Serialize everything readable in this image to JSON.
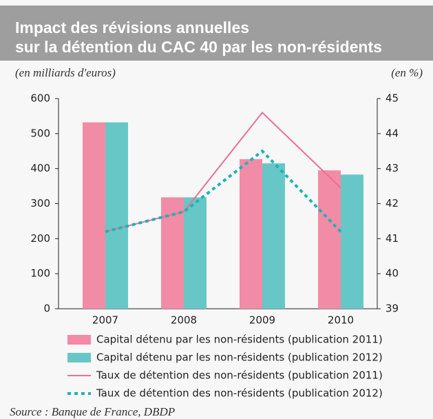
{
  "chart_data": {
    "type": "bar",
    "title": [
      "Impact des révisions annuelles",
      "sur la détention du CAC 40 par les non-résidents"
    ],
    "y_label": "(en milliards d'euros)",
    "y2_label": "(en %)",
    "source": "Source : Banque de France, DBDP",
    "categories": [
      "2007",
      "2008",
      "2009",
      "2010"
    ],
    "series": [
      {
        "name": "Capital détenu par les non-résidents (publication 2011)",
        "type": "bar",
        "color": "#f28ba6",
        "values": [
          532,
          318,
          427,
          395
        ]
      },
      {
        "name": "Capital détenu par les non-résidents (publication 2012)",
        "type": "bar",
        "color": "#67c7c6",
        "values": [
          532,
          318,
          415,
          383
        ]
      },
      {
        "name": "Taux de détention des non-résidents (publication 2011)",
        "type": "line",
        "axis": "y2",
        "color": "#ea6f98",
        "dash": false,
        "values": [
          41.2,
          41.77,
          44.6,
          42.45
        ]
      },
      {
        "name": "Taux de détention des non-résidents (publication 2012)",
        "type": "line",
        "axis": "y2",
        "color": "#1db3b3",
        "dash": true,
        "values": [
          41.2,
          41.77,
          43.5,
          41.2
        ]
      }
    ],
    "ylim": [
      0,
      600
    ],
    "yticks": [
      0,
      100,
      200,
      300,
      400,
      500,
      600
    ],
    "y2lim": [
      39,
      45
    ],
    "y2ticks": [
      39,
      40,
      41,
      42,
      43,
      44,
      45
    ]
  }
}
